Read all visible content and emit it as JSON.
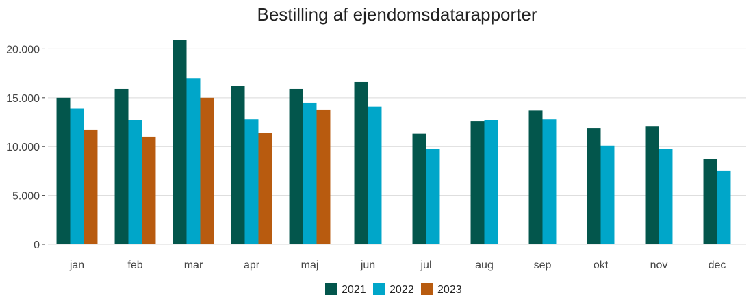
{
  "chart_data": {
    "type": "bar",
    "title": "Bestilling af ejendomsdatarapporter",
    "xlabel": "",
    "ylabel": "",
    "categories": [
      "jan",
      "feb",
      "mar",
      "apr",
      "maj",
      "jun",
      "jul",
      "aug",
      "sep",
      "okt",
      "nov",
      "dec"
    ],
    "series": [
      {
        "name": "2021",
        "color": "#03564c",
        "values": [
          15000,
          15900,
          20900,
          16200,
          15900,
          16600,
          11300,
          12600,
          13700,
          11900,
          12100,
          8700
        ]
      },
      {
        "name": "2022",
        "color": "#00a6c9",
        "values": [
          13900,
          12700,
          17000,
          12800,
          14500,
          14100,
          9800,
          12700,
          12800,
          10100,
          9800,
          7500
        ]
      },
      {
        "name": "2023",
        "color": "#b85b0f",
        "values": [
          11700,
          11000,
          15000,
          11400,
          13800,
          null,
          null,
          null,
          null,
          null,
          null,
          null
        ]
      }
    ],
    "ylim": [
      0,
      21500
    ],
    "yticks": [
      0,
      5000,
      10000,
      15000,
      20000
    ],
    "ytick_labels": [
      "0",
      "5.000",
      "10.000",
      "15.000",
      "20.000"
    ],
    "grid": true,
    "legend_position": "bottom"
  }
}
